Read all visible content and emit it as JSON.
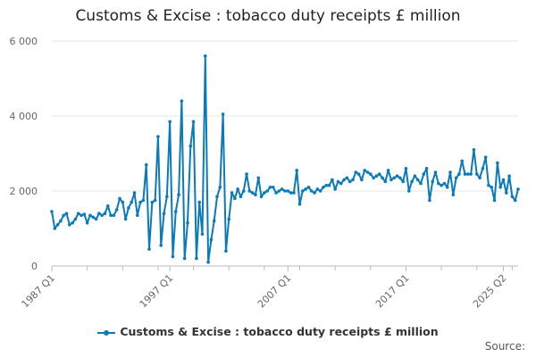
{
  "chart_data": {
    "type": "line",
    "title": "Customs & Excise : tobacco duty receipts £ million",
    "xlabel": "",
    "ylabel": "",
    "ylim": [
      0,
      6000
    ],
    "y_ticks": [
      0,
      2000,
      4000,
      6000
    ],
    "y_tick_labels": [
      "0",
      "2 000",
      "4 000",
      "6 000"
    ],
    "x_tick_labels": [
      "1987 Q1",
      "1997 Q1",
      "2007 Q1",
      "2017 Q1",
      "2025 Q2"
    ],
    "x_tick_positions": [
      "1987 Q1",
      "1997 Q1",
      "2007 Q1",
      "2017 Q1",
      "2025 Q2"
    ],
    "grid": true,
    "legend": "bottom",
    "series": [
      {
        "name": "Customs & Excise : tobacco duty receipts £ million",
        "color": "#0a7ab8",
        "values": [
          1450,
          1000,
          1100,
          1200,
          1350,
          1400,
          1100,
          1150,
          1250,
          1400,
          1350,
          1380,
          1150,
          1350,
          1300,
          1250,
          1400,
          1350,
          1400,
          1600,
          1350,
          1350,
          1500,
          1800,
          1700,
          1250,
          1550,
          1700,
          1950,
          1350,
          1700,
          1750,
          2700,
          450,
          1700,
          1750,
          3450,
          550,
          1400,
          1850,
          3850,
          250,
          1450,
          1900,
          4400,
          200,
          1150,
          3200,
          3850,
          200,
          1700,
          850,
          5600,
          100,
          700,
          1200,
          1850,
          2100,
          4050,
          400,
          1250,
          1950,
          1800,
          2050,
          1850,
          2000,
          2450,
          2000,
          1950,
          1900,
          2350,
          1850,
          1950,
          2000,
          2100,
          2100,
          1950,
          2000,
          2050,
          2000,
          2000,
          1950,
          1950,
          2550,
          1650,
          2000,
          2050,
          2100,
          2000,
          1950,
          2050,
          2000,
          2100,
          2150,
          2150,
          2300,
          2050,
          2250,
          2200,
          2300,
          2350,
          2250,
          2300,
          2500,
          2450,
          2300,
          2550,
          2500,
          2450,
          2350,
          2400,
          2450,
          2350,
          2250,
          2550,
          2300,
          2350,
          2400,
          2350,
          2250,
          2600,
          2000,
          2250,
          2400,
          2300,
          2200,
          2450,
          2600,
          1750,
          2250,
          2500,
          2200,
          2150,
          2200,
          2100,
          2500,
          1900,
          2350,
          2450,
          2800,
          2450,
          2450,
          2450,
          3100,
          2450,
          2350,
          2600,
          2900,
          2150,
          2100,
          1750,
          2750,
          2100,
          2300,
          1950,
          2400,
          1850,
          1750,
          2050
        ]
      }
    ],
    "source_label": "Source:"
  }
}
